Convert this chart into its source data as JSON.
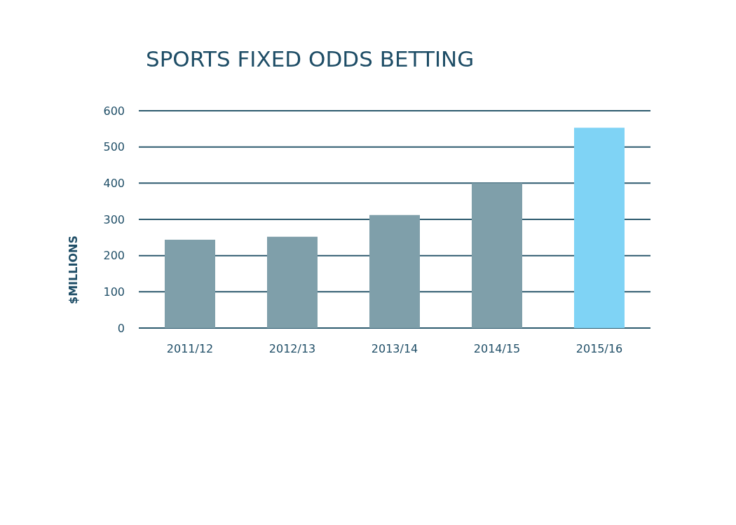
{
  "chart_data": {
    "type": "bar",
    "title": "SPORTS FIXED ODDS BETTING",
    "ylabel": "$MILLIONS",
    "categories": [
      "2011/12",
      "2012/13",
      "2013/14",
      "2014/15",
      "2015/16"
    ],
    "values": [
      244,
      252,
      312,
      400,
      553
    ],
    "colors": [
      "#7f9faa",
      "#7f9faa",
      "#7f9faa",
      "#7f9faa",
      "#7fd3f5"
    ],
    "ylim": [
      0,
      600
    ],
    "yticks": [
      0,
      100,
      200,
      300,
      400,
      500,
      600
    ],
    "grid": "y"
  }
}
